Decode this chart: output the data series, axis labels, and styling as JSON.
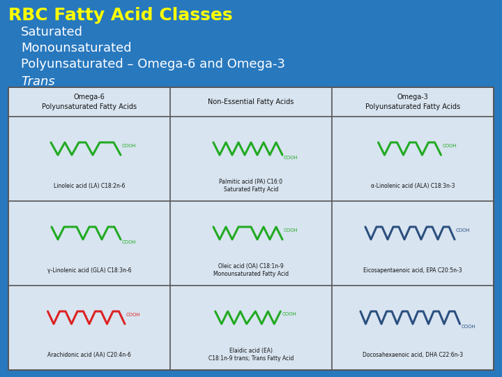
{
  "bg_color": "#2878BE",
  "title": "RBC Fatty Acid Classes",
  "title_color": "#FFFF00",
  "title_fontsize": 18,
  "bullet_items": [
    "Saturated",
    "Monounsaturated",
    "Polyunsaturated – Omega-6 and Omega-3",
    "Trans"
  ],
  "bullet_color": "#FFFFFF",
  "bullet_fontsize": 13,
  "table_bg": "#D8E4F0",
  "table_border": "#555555",
  "col_headers": [
    "Omega-6\nPolyunsaturated Fatty Acids",
    "Non-Essential Fatty Acids",
    "Omega-3\nPolyunsaturated Fatty Acids"
  ],
  "cells": [
    [
      "Linoleic acid (LA) C18:2n-6",
      "Palmitic acid (PA) C16:0\nSaturated Fatty Acid",
      "α-Linolenic acid (ALA) C18:3n-3"
    ],
    [
      "γ-Linolenic acid (GLA) C18:3n-6",
      "Oleic acid (OA) C18:1n-9\nMonounsaturated Fatty Acid",
      "Eicosapentaenoic acid, EPA C20:5n-3"
    ],
    [
      "Arachidonic acid (AA) C20:4n-6",
      "Elaidic acid (EA)\nC18:1n-9 trans; Trans Fatty Acid",
      "Docosahexaenoic acid, DHA C22:6n-3"
    ]
  ],
  "green": "#22AA22",
  "red": "#DD2222",
  "blue": "#2B4F7F"
}
